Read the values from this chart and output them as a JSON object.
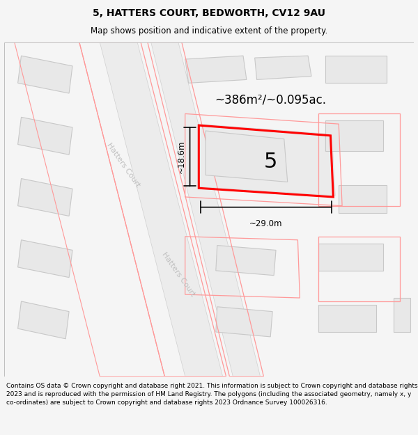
{
  "title": "5, HATTERS COURT, BEDWORTH, CV12 9AU",
  "subtitle": "Map shows position and indicative extent of the property.",
  "footer": "Contains OS data © Crown copyright and database right 2021. This information is subject to Crown copyright and database rights 2023 and is reproduced with the permission of HM Land Registry. The polygons (including the associated geometry, namely x, y co-ordinates) are subject to Crown copyright and database rights 2023 Ordnance Survey 100026316.",
  "area_label": "~386m²/~0.095ac.",
  "width_label": "~29.0m",
  "height_label": "~18.6m",
  "plot_number": "5",
  "bg_color": "#f5f5f5",
  "map_bg": "#ffffff",
  "building_fill": "#e8e8e8",
  "building_edge": "#c8c8c8",
  "highlight_color": "#ff0000",
  "plot_outline_color": "#ff9999",
  "road_label_color": "#c0c0c0",
  "street_name": "Hatters Court",
  "title_fontsize": 10,
  "subtitle_fontsize": 8.5,
  "footer_fontsize": 6.5
}
